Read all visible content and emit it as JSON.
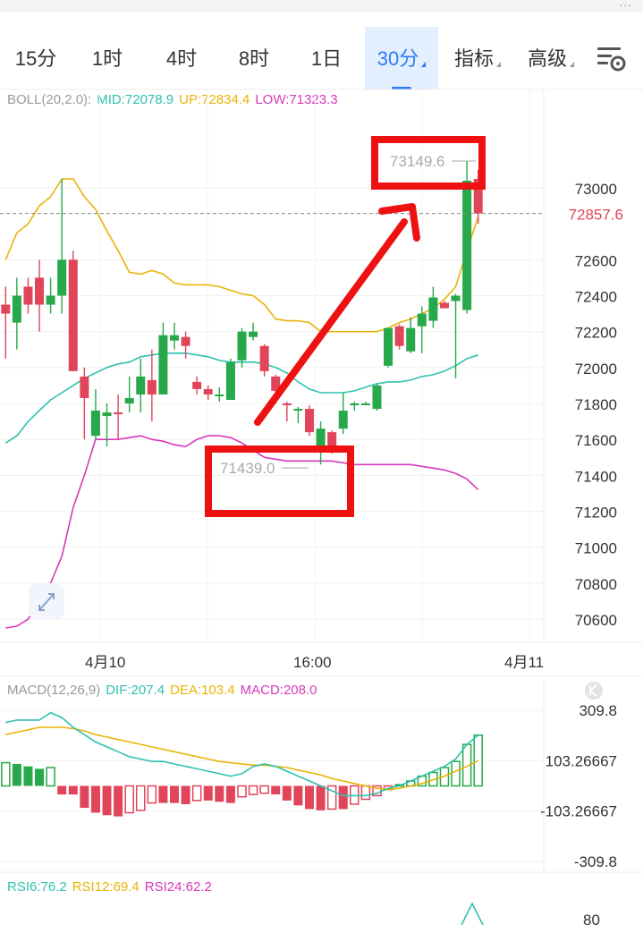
{
  "toolbar": {
    "more_label": "...",
    "tabs": [
      {
        "label": "15分",
        "active": false
      },
      {
        "label": "1时",
        "active": false
      },
      {
        "label": "4时",
        "active": false
      },
      {
        "label": "8时",
        "active": false
      },
      {
        "label": "1日",
        "active": false
      },
      {
        "label": "30分",
        "active": true
      },
      {
        "label": "指标",
        "active": false
      },
      {
        "label": "高级",
        "active": false
      }
    ],
    "settings_icon": "chart-settings-icon"
  },
  "boll_legend": {
    "name": "BOLL(20,2.0):",
    "mid": "MID:72078.9",
    "up": "UP:72834.4",
    "low": "LOW:71323.3"
  },
  "macd_legend": {
    "name": "MACD(12,26,9)",
    "dif": "DIF:207.4",
    "dea": "DEA:103.4",
    "macd": "MACD:208.0"
  },
  "rsi_legend": {
    "rsi6": "RSI6:76.2",
    "rsi12": "RSI12:69.4",
    "rsi24": "RSI24:62.2"
  },
  "colors": {
    "up": "#27a84a",
    "down": "#e0455a",
    "mid": "#2ec2b0",
    "upper": "#eab308",
    "lower": "#d63ab8",
    "annotation": "#ee1111",
    "accent": "#2b7cf6"
  },
  "chart_data": {
    "type": "candlestick",
    "price_axis": {
      "ticks": [
        "73000",
        "72600",
        "72400",
        "72200",
        "72000",
        "71800",
        "71600",
        "71400",
        "71200",
        "71000",
        "70800",
        "70600"
      ],
      "ylim": [
        70500,
        73400
      ]
    },
    "time_axis": [
      "4月10",
      "16:00",
      "4月11"
    ],
    "last_price": "72857.6",
    "high_label": "73149.6",
    "low_label": "71439.0",
    "candles": [
      [
        72350,
        72300,
        72050,
        72450
      ],
      [
        72250,
        72400,
        72100,
        72500
      ],
      [
        72450,
        72350,
        72300,
        72500
      ],
      [
        72500,
        72350,
        72200,
        72600
      ],
      [
        72350,
        72400,
        72300,
        72500
      ],
      [
        72400,
        72600,
        72300,
        73050
      ],
      [
        72600,
        71980,
        71980,
        72650
      ],
      [
        71950,
        71830,
        71600,
        72000
      ],
      [
        71620,
        71760,
        71600,
        71880
      ],
      [
        71730,
        71750,
        71560,
        71800
      ],
      [
        71750,
        71740,
        71600,
        71850
      ],
      [
        71800,
        71830,
        71750,
        71950
      ],
      [
        71850,
        71950,
        71750,
        72050
      ],
      [
        71930,
        71850,
        71700,
        72100
      ],
      [
        71850,
        72180,
        71850,
        72250
      ],
      [
        72150,
        72180,
        72100,
        72250
      ],
      [
        72170,
        72120,
        72050,
        72200
      ],
      [
        71920,
        71880,
        71850,
        71950
      ],
      [
        71880,
        71850,
        71820,
        71900
      ],
      [
        71840,
        71850,
        71810,
        71890
      ],
      [
        71820,
        72030,
        71820,
        72050
      ],
      [
        72040,
        72200,
        72000,
        72220
      ],
      [
        72170,
        72200,
        72150,
        72250
      ],
      [
        72120,
        71980,
        71950,
        72130
      ],
      [
        71950,
        71870,
        71800,
        71960
      ],
      [
        71800,
        71790,
        71700,
        71810
      ],
      [
        71760,
        71770,
        71690,
        71780
      ],
      [
        71770,
        71640,
        71620,
        71790
      ],
      [
        71540,
        71660,
        71460,
        71700
      ],
      [
        71640,
        71540,
        71520,
        71650
      ],
      [
        71660,
        71760,
        71630,
        71860
      ],
      [
        71790,
        71800,
        71760,
        71810
      ],
      [
        71800,
        71800,
        71790,
        71810
      ],
      [
        71770,
        71900,
        71760,
        71910
      ],
      [
        72010,
        72220,
        72000,
        72220
      ],
      [
        72230,
        72120,
        72100,
        72240
      ],
      [
        72090,
        72220,
        72080,
        72280
      ],
      [
        72230,
        72300,
        72080,
        72340
      ],
      [
        72260,
        72390,
        72220,
        72450
      ],
      [
        72360,
        72330,
        72330,
        72370
      ],
      [
        72370,
        72400,
        71940,
        72410
      ],
      [
        72320,
        73040,
        72300,
        73150
      ],
      [
        73050,
        72857.6,
        72800,
        73100
      ]
    ],
    "boll": {
      "mid": [
        71580,
        71620,
        71700,
        71760,
        71820,
        71860,
        71900,
        71940,
        71970,
        72000,
        72020,
        72030,
        72060,
        72070,
        72080,
        72080,
        72080,
        72070,
        72060,
        72040,
        72030,
        72030,
        72030,
        72020,
        72000,
        71970,
        71920,
        71880,
        71860,
        71860,
        71860,
        71870,
        71890,
        71910,
        71920,
        71920,
        71930,
        71950,
        71960,
        71980,
        72010,
        72050,
        72070
      ],
      "upper": [
        72600,
        72750,
        72800,
        72900,
        72950,
        73050,
        73050,
        72950,
        72880,
        72760,
        72650,
        72530,
        72520,
        72540,
        72520,
        72470,
        72460,
        72460,
        72460,
        72450,
        72430,
        72410,
        72400,
        72350,
        72270,
        72260,
        72260,
        72250,
        72200,
        72200,
        72200,
        72200,
        72200,
        72200,
        72220,
        72250,
        72270,
        72300,
        72330,
        72380,
        72450,
        72650,
        72840
      ],
      "lower": [
        70550,
        70560,
        70600,
        70700,
        70800,
        70950,
        71220,
        71400,
        71600,
        71600,
        71600,
        71610,
        71620,
        71600,
        71590,
        71570,
        71560,
        71600,
        71620,
        71620,
        71610,
        71580,
        71540,
        71500,
        71490,
        71480,
        71480,
        71480,
        71480,
        71480,
        71470,
        71460,
        71460,
        71460,
        71460,
        71460,
        71460,
        71450,
        71440,
        71430,
        71410,
        71380,
        71320
      ]
    },
    "macd": {
      "axis_ticks": [
        "309.8",
        "103.26667",
        "-103.26667",
        "-309.8"
      ],
      "ylim": [
        -309.8,
        309.8
      ],
      "dif": [
        260,
        270,
        270,
        270,
        300,
        280,
        240,
        210,
        180,
        160,
        140,
        120,
        110,
        100,
        100,
        90,
        80,
        70,
        60,
        50,
        40,
        50,
        80,
        90,
        80,
        60,
        40,
        20,
        0,
        -20,
        -40,
        -40,
        -40,
        -30,
        -10,
        0,
        20,
        40,
        60,
        80,
        110,
        170,
        207.4
      ],
      "dea": [
        210,
        220,
        230,
        240,
        240,
        240,
        235,
        225,
        210,
        200,
        190,
        180,
        170,
        160,
        150,
        140,
        130,
        120,
        110,
        100,
        95,
        90,
        85,
        85,
        80,
        75,
        65,
        55,
        45,
        30,
        20,
        10,
        0,
        -10,
        -15,
        -10,
        0,
        10,
        25,
        40,
        60,
        80,
        103.4
      ],
      "hist": [
        95,
        90,
        80,
        70,
        75,
        -35,
        -35,
        -90,
        -110,
        -120,
        -125,
        -110,
        -100,
        -70,
        -70,
        -70,
        -75,
        -60,
        -60,
        -65,
        -70,
        -45,
        -35,
        -30,
        -35,
        -60,
        -80,
        -95,
        -100,
        -95,
        -95,
        -75,
        -55,
        -40,
        -15,
        5,
        20,
        40,
        55,
        75,
        100,
        170,
        208
      ]
    },
    "rsi": {
      "axis_ticks": [
        "80"
      ]
    }
  }
}
